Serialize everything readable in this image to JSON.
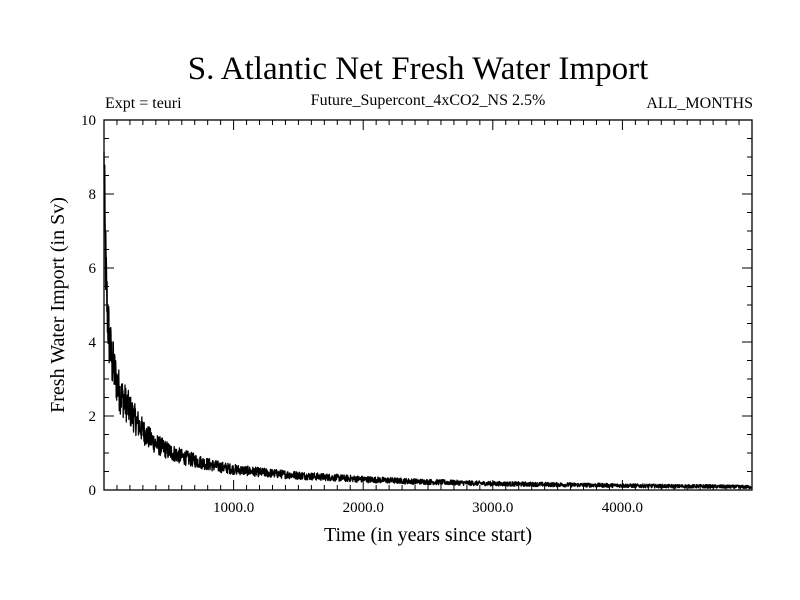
{
  "chart_data": {
    "type": "line",
    "title": "S. Atlantic Net Fresh Water Import",
    "subtitle": "Future_Supercont_4xCO2_NS 2.5%",
    "label_left": "Expt = teuri",
    "label_right": "ALL_MONTHS",
    "xlabel": "Time (in years since start)",
    "ylabel": "Fresh Water Import (in Sv)",
    "xlim": [
      0,
      5000
    ],
    "ylim": [
      0,
      10
    ],
    "x_tick_labels": [
      "1000.0",
      "2000.0",
      "3000.0",
      "4000.0"
    ],
    "y_tick_labels": [
      "0",
      "2",
      "4",
      "6",
      "8",
      "10"
    ],
    "grid": false,
    "line_color": "#000000",
    "series": [
      {
        "x": [
          0,
          5,
          10,
          20,
          30,
          40,
          50,
          60,
          80,
          100,
          125,
          150,
          175,
          200,
          250,
          300,
          350,
          400,
          500,
          600,
          700,
          800,
          900,
          1000,
          1200,
          1400,
          1600,
          1800,
          2000,
          2200,
          2400,
          2600,
          2800,
          3000,
          3200,
          3400,
          3600,
          3800,
          4000,
          4200,
          4400,
          4600,
          4800,
          5000
        ],
        "y": [
          8.6,
          7.5,
          6.5,
          5.3,
          4.6,
          4.1,
          3.8,
          3.5,
          3.2,
          2.9,
          2.6,
          2.45,
          2.3,
          2.15,
          1.85,
          1.6,
          1.4,
          1.25,
          1.05,
          0.9,
          0.8,
          0.7,
          0.62,
          0.56,
          0.48,
          0.42,
          0.37,
          0.33,
          0.29,
          0.26,
          0.23,
          0.21,
          0.19,
          0.17,
          0.16,
          0.15,
          0.14,
          0.13,
          0.12,
          0.11,
          0.1,
          0.1,
          0.09,
          0.08
        ]
      }
    ]
  }
}
